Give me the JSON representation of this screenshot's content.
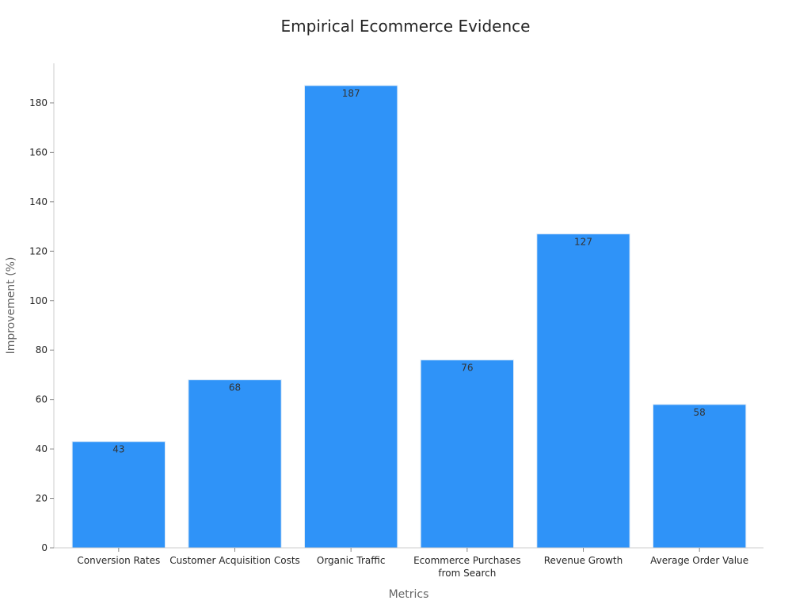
{
  "chart_data": {
    "type": "bar",
    "title": "Empirical Ecommerce Evidence",
    "xlabel": "Metrics",
    "ylabel": "Improvement (%)",
    "categories": [
      [
        "Conversion Rates"
      ],
      [
        "Customer Acquisition Costs"
      ],
      [
        "Organic Traffic"
      ],
      [
        "Ecommerce Purchases",
        "from Search"
      ],
      [
        "Revenue Growth"
      ],
      [
        "Average Order Value"
      ]
    ],
    "values": [
      43,
      68,
      187,
      76,
      127,
      58
    ],
    "value_labels": [
      "43",
      "68",
      "187",
      "76",
      "127",
      "58"
    ],
    "yticks": [
      0,
      20,
      40,
      60,
      80,
      100,
      120,
      140,
      160,
      180
    ],
    "ytick_labels": [
      "0",
      "20",
      "40",
      "60",
      "80",
      "100",
      "120",
      "140",
      "160",
      "180"
    ],
    "ylim": [
      0,
      196
    ],
    "grid": false,
    "legend": "none",
    "colors": {
      "bar": "#2f93f8",
      "bar_edge": "#dbe9f7"
    }
  }
}
